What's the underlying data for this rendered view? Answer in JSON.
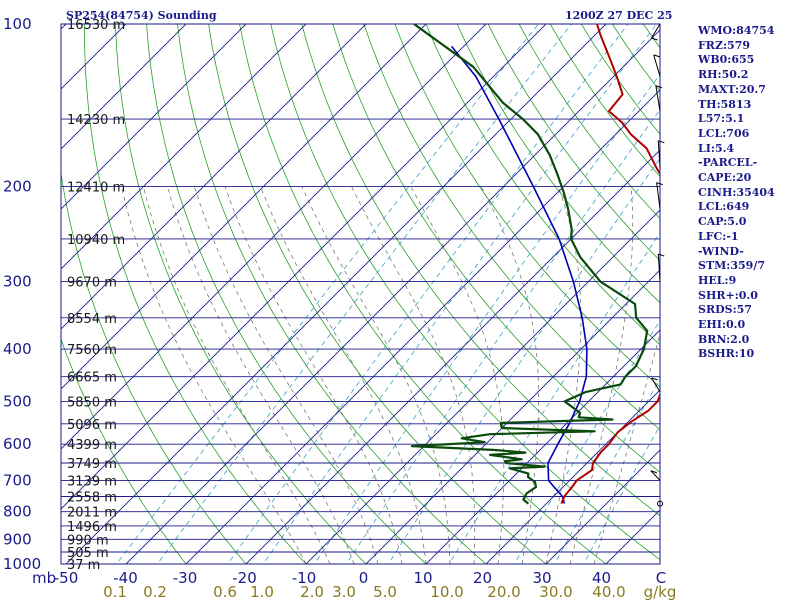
{
  "header": {
    "station": "SP254(84754) Sounding",
    "time": "1200Z 27 DEC 25"
  },
  "stats": [
    "WMO:84754",
    "FRZ:579",
    "WB0:655",
    "RH:50.2",
    "MAXT:20.7",
    "TH:5813",
    "L57:5.1",
    "LCL:706",
    "LI:5.4",
    "-PARCEL-",
    "CAPE:20",
    "CINH:35404",
    "LCL:649",
    "CAP:5.0",
    "LFC:-1",
    "-WIND-",
    "STM:359/7",
    "HEL:9",
    "SHR+:0.0",
    "SRDS:57",
    "EHI:0.0",
    "BRN:2.0",
    "BSHR:10"
  ],
  "colors": {
    "isobar": "#1a1a8a",
    "isotherm": "#1a1a8a",
    "dry_adiabat": "#2aa02a",
    "moist_adiabat": "#7a7a70",
    "mixing_ratio": "#3aa0c8",
    "temperature": "#b00000",
    "dewpoint": "#0a4a0a",
    "parcel": "#0000b0",
    "axis_label": "#1a1a8a",
    "mixing_label": "#8a7a20",
    "wind": "#000000"
  },
  "chart_data": {
    "type": "skew-t",
    "pressure_unit": "mb",
    "temperature_unit": "C",
    "mixing_ratio_unit": "g/kg",
    "pressure_range": [
      1000,
      100
    ],
    "pressure_ticks": [
      {
        "p": 100,
        "label": "100"
      },
      {
        "p": 200,
        "label": "200"
      },
      {
        "p": 300,
        "label": "300"
      },
      {
        "p": 400,
        "label": "400"
      },
      {
        "p": 500,
        "label": "500"
      },
      {
        "p": 600,
        "label": "600"
      },
      {
        "p": 700,
        "label": "700"
      },
      {
        "p": 800,
        "label": "800"
      },
      {
        "p": 900,
        "label": "900"
      },
      {
        "p": 1000,
        "label": "1000"
      }
    ],
    "temperature_ticks": [
      "-50",
      "-40",
      "-30",
      "-20",
      "-10",
      "0",
      "10",
      "20",
      "30",
      "40",
      "C"
    ],
    "mixing_ratio_labels": [
      "0.1",
      "0.2",
      "0.6",
      "1.0",
      "2.0",
      "3.0",
      "5.0",
      "10.0",
      "20.0",
      "30.0",
      "40.0",
      "g/kg"
    ],
    "heights": [
      {
        "p": 100,
        "label": "16530 m"
      },
      {
        "p": 150,
        "label": "14230 m"
      },
      {
        "p": 200,
        "label": "12410 m"
      },
      {
        "p": 250,
        "label": "10940 m"
      },
      {
        "p": 300,
        "label": "9670 m"
      },
      {
        "p": 350,
        "label": "8554 m"
      },
      {
        "p": 400,
        "label": "7560 m"
      },
      {
        "p": 450,
        "label": "6665 m"
      },
      {
        "p": 500,
        "label": "5850 m"
      },
      {
        "p": 550,
        "label": "5096 m"
      },
      {
        "p": 600,
        "label": "4399 m"
      },
      {
        "p": 650,
        "label": "3749 m"
      },
      {
        "p": 700,
        "label": "3139 m"
      },
      {
        "p": 750,
        "label": "2558 m"
      },
      {
        "p": 800,
        "label": "2011 m"
      },
      {
        "p": 850,
        "label": "1496 m"
      },
      {
        "p": 900,
        "label": "990 m"
      },
      {
        "p": 950,
        "label": "505 m"
      },
      {
        "p": 1000,
        "label": "37 m"
      }
    ],
    "temperature_profile": [
      [
        773,
        22.5
      ],
      [
        750,
        21.8
      ],
      [
        720,
        21.5
      ],
      [
        700,
        21.2
      ],
      [
        670,
        22.0
      ],
      [
        650,
        21.0
      ],
      [
        620,
        20.5
      ],
      [
        600,
        20.5
      ],
      [
        570,
        20.0
      ],
      [
        545,
        20.5
      ],
      [
        520,
        21.5
      ],
      [
        500,
        21.5
      ],
      [
        480,
        20.5
      ],
      [
        460,
        19.5
      ],
      [
        440,
        18.5
      ],
      [
        420,
        18.0
      ],
      [
        400,
        17.5
      ],
      [
        380,
        16.5
      ],
      [
        350,
        13.5
      ],
      [
        325,
        11.0
      ],
      [
        300,
        7.5
      ],
      [
        275,
        4.0
      ],
      [
        250,
        -0.5
      ],
      [
        225,
        -5.5
      ],
      [
        200,
        -12.5
      ],
      [
        185,
        -17.5
      ],
      [
        170,
        -22.5
      ],
      [
        160,
        -27.5
      ],
      [
        152,
        -31.0
      ],
      [
        145,
        -35.0
      ],
      [
        135,
        -35.5
      ],
      [
        125,
        -39.5
      ],
      [
        115,
        -44.0
      ],
      [
        105,
        -49.0
      ],
      [
        100,
        -51.5
      ]
    ],
    "dewpoint_profile": [
      [
        773,
        17.0
      ],
      [
        760,
        15.5
      ],
      [
        740,
        15.0
      ],
      [
        720,
        15.5
      ],
      [
        705,
        14.5
      ],
      [
        690,
        12.5
      ],
      [
        680,
        12.0
      ],
      [
        665,
        8.0
      ],
      [
        660,
        13.5
      ],
      [
        650,
        6.5
      ],
      [
        645,
        6.0
      ],
      [
        640,
        8.5
      ],
      [
        628,
        2.5
      ],
      [
        622,
        8.0
      ],
      [
        615,
        2.5
      ],
      [
        605,
        -12.0
      ],
      [
        595,
        -0.5
      ],
      [
        585,
        -5.0
      ],
      [
        575,
        -1.0
      ],
      [
        568,
        16.0
      ],
      [
        560,
        0.0
      ],
      [
        555,
        -0.5
      ],
      [
        548,
        -1.0
      ],
      [
        540,
        17.0
      ],
      [
        535,
        11.0
      ],
      [
        525,
        10.5
      ],
      [
        500,
        6.0
      ],
      [
        480,
        8.0
      ],
      [
        465,
        12.5
      ],
      [
        450,
        12.0
      ],
      [
        430,
        12.0
      ],
      [
        400,
        10.5
      ],
      [
        370,
        8.0
      ],
      [
        350,
        4.0
      ],
      [
        330,
        1.5
      ],
      [
        300,
        -8.0
      ],
      [
        270,
        -15.5
      ],
      [
        250,
        -20.0
      ],
      [
        240,
        -21.5
      ],
      [
        220,
        -25.5
      ],
      [
        205,
        -29.0
      ],
      [
        190,
        -33.0
      ],
      [
        175,
        -37.5
      ],
      [
        160,
        -43.0
      ],
      [
        150,
        -48.0
      ],
      [
        140,
        -54.0
      ],
      [
        120,
        -65.0
      ],
      [
        100,
        -82.0
      ]
    ],
    "parcel_profile": [
      [
        773,
        23.0
      ],
      [
        750,
        21.5
      ],
      [
        720,
        18.5
      ],
      [
        700,
        16.5
      ],
      [
        650,
        13.5
      ],
      [
        600,
        12.0
      ],
      [
        550,
        10.5
      ],
      [
        500,
        8.5
      ],
      [
        450,
        5.5
      ],
      [
        400,
        1.0
      ],
      [
        350,
        -5.0
      ],
      [
        300,
        -12.5
      ],
      [
        250,
        -22.0
      ],
      [
        200,
        -35.0
      ],
      [
        150,
        -52.0
      ],
      [
        125,
        -63.0
      ],
      [
        110,
        -72.0
      ]
    ],
    "wind_barbs": [
      {
        "p": 700,
        "dir": 290,
        "speed": 10
      },
      {
        "p": 480,
        "dir": 300,
        "speed": 10
      },
      {
        "p": 300,
        "dir": 350,
        "speed": 10
      },
      {
        "p": 220,
        "dir": 340,
        "speed": 10
      },
      {
        "p": 185,
        "dir": 350,
        "speed": 10
      },
      {
        "p": 145,
        "dir": 335,
        "speed": 10
      },
      {
        "p": 125,
        "dir": 320,
        "speed": 10
      },
      {
        "p": 100,
        "dir": 240,
        "speed": 10
      }
    ]
  }
}
